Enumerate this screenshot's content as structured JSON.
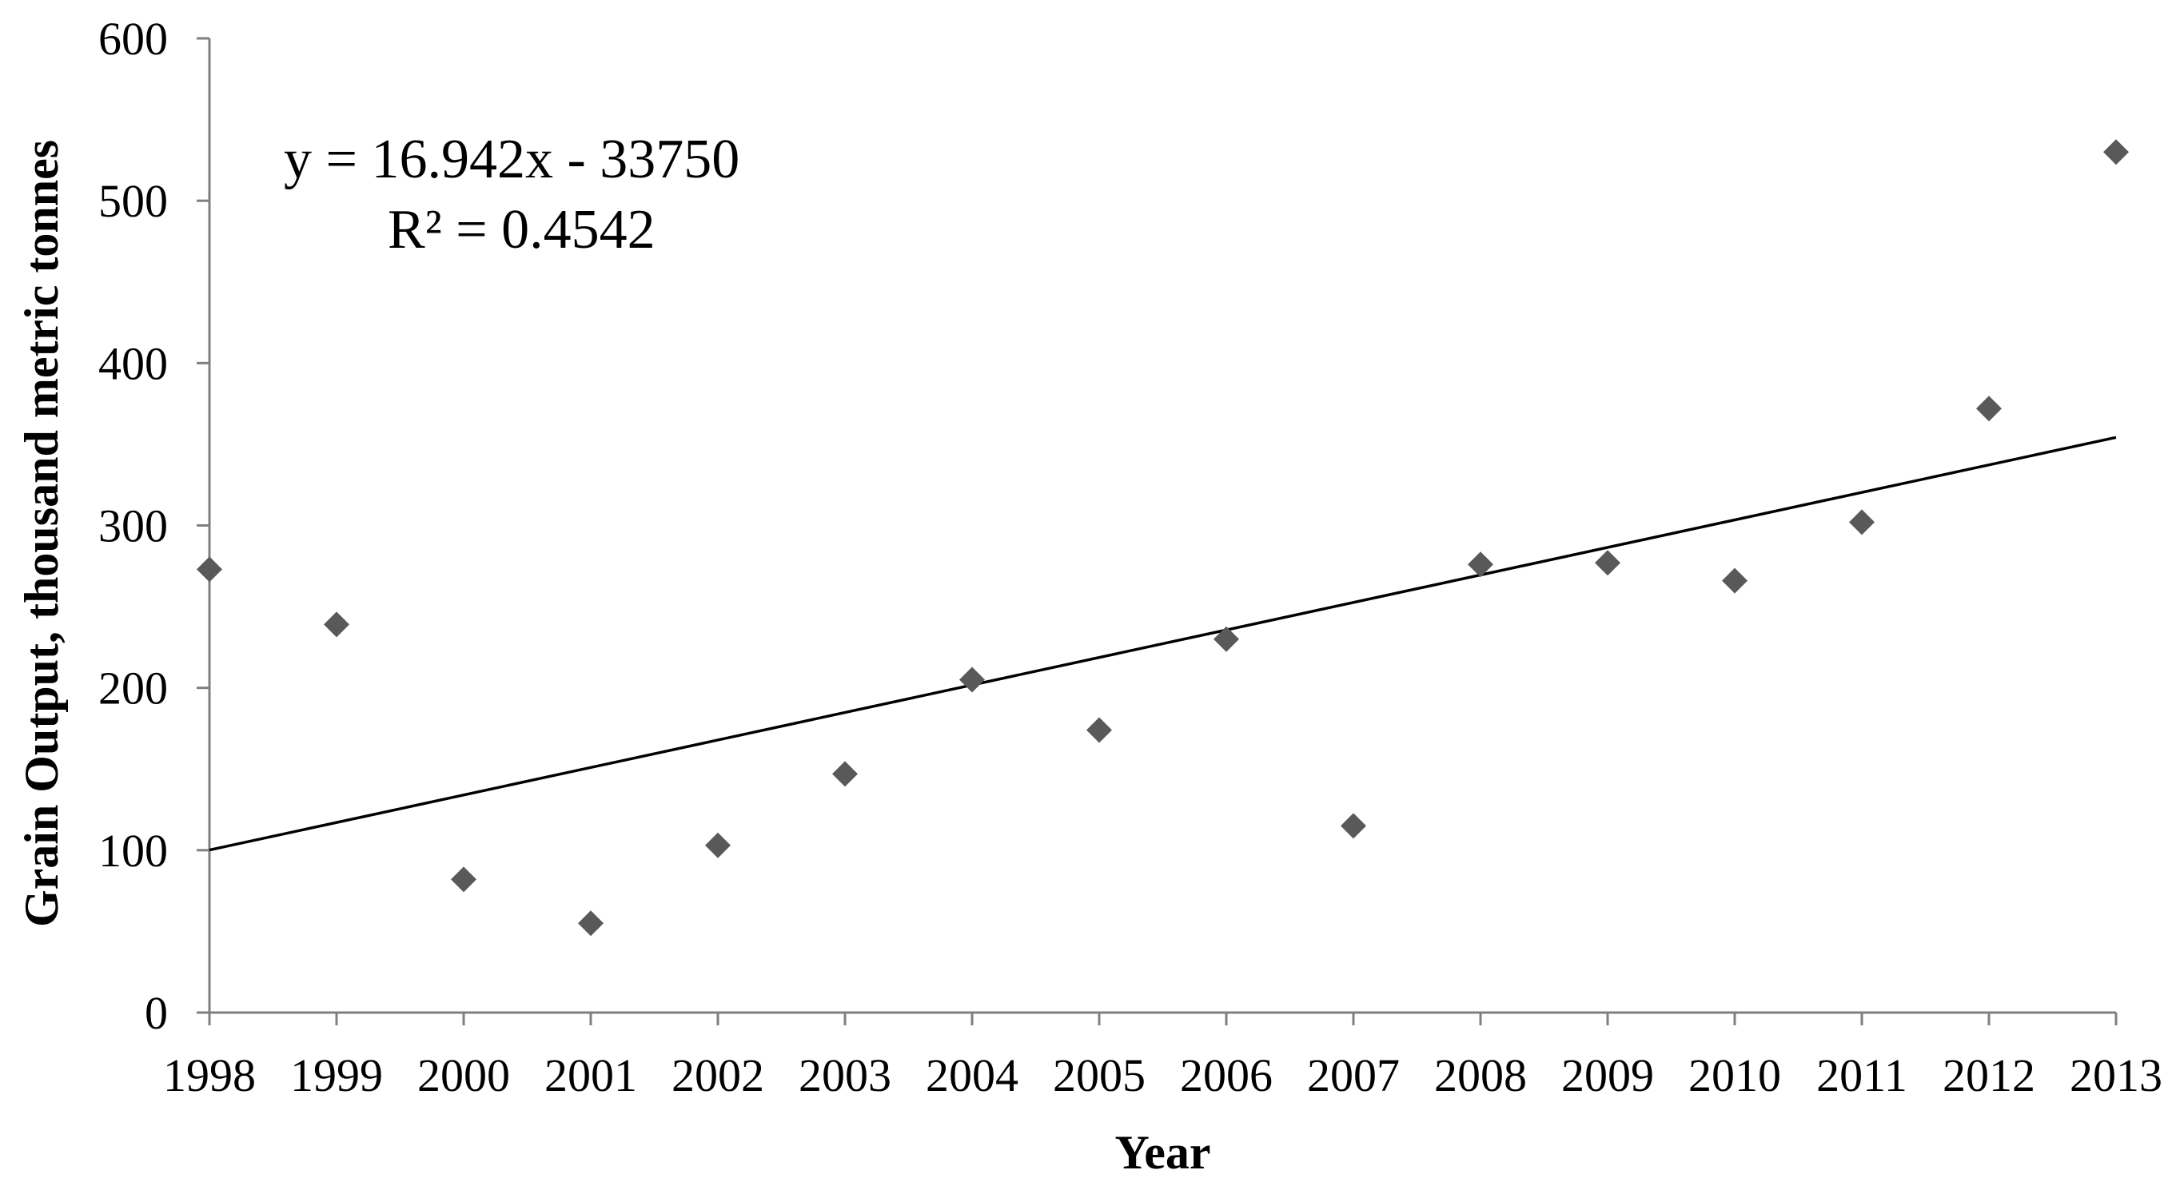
{
  "chart_data": {
    "type": "scatter",
    "title": "",
    "xlabel": "Year",
    "ylabel": "Grain Output, thousand metric tonnes",
    "xlim": [
      1998,
      2013
    ],
    "ylim": [
      0,
      600
    ],
    "x_ticks": [
      "1998",
      "1999",
      "2000",
      "2001",
      "2002",
      "2003",
      "2004",
      "2005",
      "2006",
      "2007",
      "2008",
      "2009",
      "2010",
      "2011",
      "2012",
      "2013"
    ],
    "y_ticks": [
      "0",
      "100",
      "200",
      "300",
      "400",
      "500",
      "600"
    ],
    "grid": false,
    "legend": "none",
    "marker": "diamond",
    "marker_color": "#595959",
    "series": [
      {
        "x": [
          1998,
          1999,
          2000,
          2001,
          2002,
          2003,
          2004,
          2005,
          2006,
          2007,
          2008,
          2009,
          2010,
          2011,
          2012,
          2013
        ],
        "values": [
          273,
          239,
          82,
          55,
          103,
          147,
          205,
          174,
          230,
          115,
          276,
          277,
          266,
          302,
          372,
          530
        ]
      }
    ],
    "trendline": {
      "type": "linear",
      "slope": 16.942,
      "intercept": -33750,
      "equation": "y = 16.942x - 33750",
      "r_squared": "R² = 0.4542",
      "color": "#000000"
    }
  }
}
